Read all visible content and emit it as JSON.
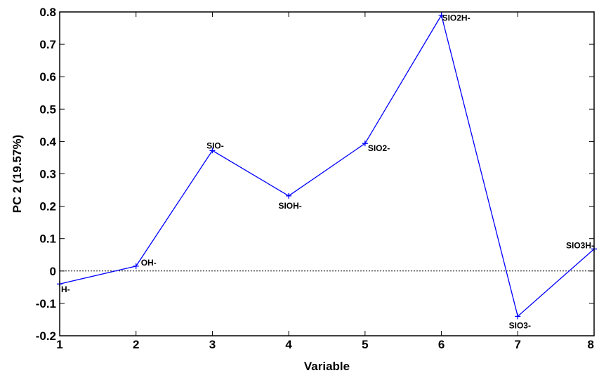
{
  "chart_data": {
    "type": "line",
    "xlabel": "Variable",
    "ylabel": "PC 2 (19.57%)",
    "xlim": [
      1,
      8
    ],
    "ylim": [
      -0.2,
      0.8
    ],
    "xticks": [
      "1",
      "2",
      "3",
      "4",
      "5",
      "6",
      "7",
      "8"
    ],
    "yticks": [
      "-0.2",
      "-0.1",
      "0",
      "0.1",
      "0.2",
      "0.3",
      "0.4",
      "0.5",
      "0.6",
      "0.7",
      "0.8"
    ],
    "reference_line_y": 0,
    "grid": false,
    "series": [
      {
        "color": "#0000ff",
        "marker": "+",
        "x": [
          1,
          2,
          3,
          4,
          5,
          6,
          7,
          8
        ],
        "values": [
          -0.04,
          0.015,
          0.372,
          0.232,
          0.394,
          0.79,
          -0.14,
          0.068
        ],
        "labels": [
          "H-",
          "OH-",
          "SIO-",
          "SIOH-",
          "SIO2-",
          "SIO2H-",
          "SIO3-",
          "SIO3H-"
        ]
      }
    ]
  }
}
